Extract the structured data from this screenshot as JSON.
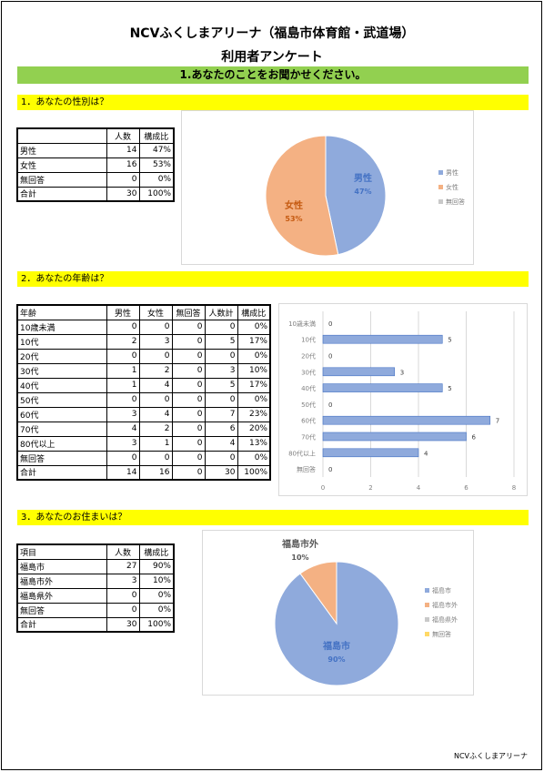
{
  "header": {
    "title_line1": "NCVふくしまアリーナ（福島市体育館・武道場）",
    "title_line2": "利用者アンケート",
    "section_title": "1.あなたのことをお聞かせください。"
  },
  "q1": {
    "label": "1．あなたの性別は？",
    "columns": [
      "",
      "人数",
      "構成比"
    ],
    "rows": [
      [
        "男性",
        "14",
        "47%"
      ],
      [
        "女性",
        "16",
        "53%"
      ],
      [
        "無回答",
        "0",
        "0%"
      ],
      [
        "合計",
        "30",
        "100%"
      ]
    ]
  },
  "q2": {
    "label": "2．あなたの年齢は？",
    "columns": [
      "年齢",
      "男性",
      "女性",
      "無回答",
      "人数計",
      "構成比"
    ],
    "rows": [
      [
        "10歳未満",
        "0",
        "0",
        "0",
        "0",
        "0%"
      ],
      [
        "10代",
        "2",
        "3",
        "0",
        "5",
        "17%"
      ],
      [
        "20代",
        "0",
        "0",
        "0",
        "0",
        "0%"
      ],
      [
        "30代",
        "1",
        "2",
        "0",
        "3",
        "10%"
      ],
      [
        "40代",
        "1",
        "4",
        "0",
        "5",
        "17%"
      ],
      [
        "50代",
        "0",
        "0",
        "0",
        "0",
        "0%"
      ],
      [
        "60代",
        "3",
        "4",
        "0",
        "7",
        "23%"
      ],
      [
        "70代",
        "4",
        "2",
        "0",
        "6",
        "20%"
      ],
      [
        "80代以上",
        "3",
        "1",
        "0",
        "4",
        "13%"
      ],
      [
        "無回答",
        "0",
        "0",
        "0",
        "0",
        "0%"
      ],
      [
        "合計",
        "14",
        "16",
        "0",
        "30",
        "100%"
      ]
    ]
  },
  "q3": {
    "label": "3．あなたのお住まいは？",
    "columns": [
      "項目",
      "人数",
      "構成比"
    ],
    "rows": [
      [
        "福島市",
        "27",
        "90%"
      ],
      [
        "福島市外",
        "3",
        "10%"
      ],
      [
        "福島県外",
        "0",
        "0%"
      ],
      [
        "無回答",
        "0",
        "0%"
      ],
      [
        "合計",
        "30",
        "100%"
      ]
    ]
  },
  "footer": {
    "text": "NCVふくしまアリーナ"
  },
  "chart_data": [
    {
      "type": "pie",
      "categories": [
        "男性",
        "女性",
        "無回答"
      ],
      "values": [
        14,
        16,
        0
      ],
      "data_labels": [
        {
          "category": "男性",
          "percent": "47%"
        },
        {
          "category": "女性",
          "percent": "53%"
        }
      ],
      "colors": [
        "#8faadc",
        "#f4b183",
        "#c9c9c9"
      ],
      "legend": "right"
    },
    {
      "type": "bar",
      "orientation": "horizontal",
      "categories": [
        "10歳未満",
        "10代",
        "20代",
        "30代",
        "40代",
        "50代",
        "60代",
        "70代",
        "80代以上",
        "無回答"
      ],
      "values": [
        0,
        5,
        0,
        3,
        5,
        0,
        7,
        6,
        4,
        0
      ],
      "xlim": [
        0,
        8
      ],
      "xticks": [
        "0",
        "2",
        "4",
        "6",
        "8"
      ],
      "grid": true,
      "color": "#8faadc"
    },
    {
      "type": "pie",
      "categories": [
        "福島市",
        "福島市外",
        "福島県外",
        "無回答"
      ],
      "values": [
        27,
        3,
        0,
        0
      ],
      "data_labels": [
        {
          "category": "福島市",
          "percent": "90%"
        },
        {
          "category": "福島市外",
          "percent": "10%"
        }
      ],
      "colors": [
        "#8faadc",
        "#f4b183",
        "#c9c9c9",
        "#ffd966"
      ],
      "legend": "right"
    }
  ]
}
